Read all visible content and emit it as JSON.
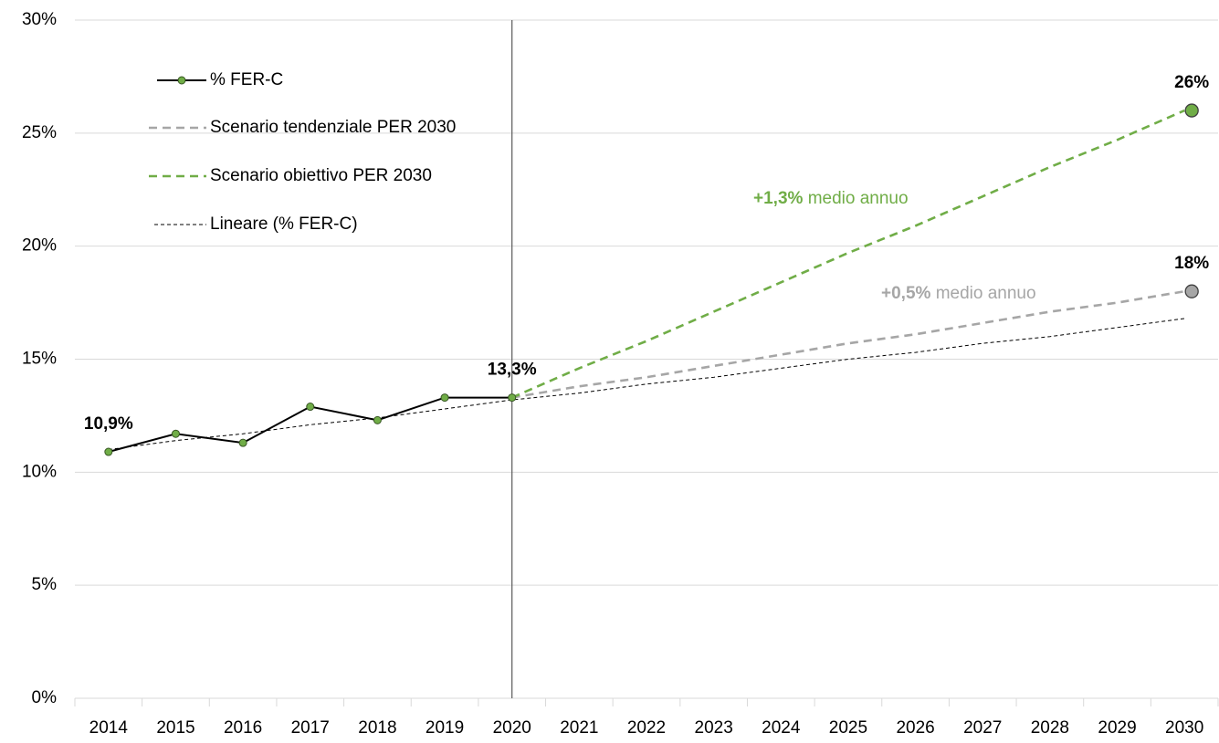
{
  "chart_data": {
    "type": "line",
    "categories": [
      "2014",
      "2015",
      "2016",
      "2017",
      "2018",
      "2019",
      "2020",
      "2021",
      "2022",
      "2023",
      "2024",
      "2025",
      "2026",
      "2027",
      "2028",
      "2029",
      "2030"
    ],
    "series": [
      {
        "name": "% FER-C",
        "color": "#000000",
        "marker_color": "#70ad47",
        "dash": "solid",
        "markers": "all",
        "values": [
          10.9,
          11.7,
          11.3,
          12.9,
          12.3,
          13.3,
          13.3,
          null,
          null,
          null,
          null,
          null,
          null,
          null,
          null,
          null,
          null
        ],
        "value_labels": [
          "10,9%",
          null,
          null,
          null,
          null,
          null,
          "13,3%",
          null,
          null,
          null,
          null,
          null,
          null,
          null,
          null,
          null,
          null
        ]
      },
      {
        "name": "Scenario tendenziale PER 2030",
        "color": "#a6a6a6",
        "marker_color": "#a6a6a6",
        "dash": "long",
        "markers": "end",
        "values": [
          null,
          null,
          null,
          null,
          null,
          null,
          13.3,
          13.8,
          14.2,
          14.7,
          15.2,
          15.7,
          16.1,
          16.6,
          17.1,
          17.5,
          18
        ],
        "value_labels": [
          null,
          null,
          null,
          null,
          null,
          null,
          null,
          null,
          null,
          null,
          null,
          null,
          null,
          null,
          null,
          null,
          "18%"
        ]
      },
      {
        "name": "Scenario obiettivo PER 2030",
        "color": "#70ad47",
        "marker_color": "#70ad47",
        "dash": "long",
        "markers": "end",
        "values": [
          null,
          null,
          null,
          null,
          null,
          null,
          13.3,
          14.6,
          15.8,
          17.1,
          18.4,
          19.7,
          20.9,
          22.2,
          23.5,
          24.7,
          26
        ],
        "value_labels": [
          null,
          null,
          null,
          null,
          null,
          null,
          null,
          null,
          null,
          null,
          null,
          null,
          null,
          null,
          null,
          null,
          "26%"
        ]
      },
      {
        "name": "Lineare (% FER-C)",
        "color": "#000000",
        "dash": "short",
        "markers": "none",
        "values": [
          11.0,
          11.4,
          11.7,
          12.1,
          12.4,
          12.8,
          13.2,
          13.5,
          13.9,
          14.2,
          14.6,
          15.0,
          15.3,
          15.7,
          16.0,
          16.4,
          16.8
        ]
      }
    ],
    "annotations": [
      {
        "bold": "+1,3%",
        "text": "medio annuo",
        "color": "#70ad47"
      },
      {
        "bold": "+0,5%",
        "text": "medio annuo",
        "color": "#a6a6a6"
      }
    ],
    "vline": "2020",
    "ylim": [
      0,
      30
    ],
    "yticks": [
      {
        "value": 0,
        "label": "0%"
      },
      {
        "value": 5,
        "label": "5%"
      },
      {
        "value": 10,
        "label": "10%"
      },
      {
        "value": 15,
        "label": "15%"
      },
      {
        "value": 20,
        "label": "20%"
      },
      {
        "value": 25,
        "label": "25%"
      },
      {
        "value": 30,
        "label": "30%"
      }
    ],
    "grid": true,
    "legend": "top-left"
  }
}
